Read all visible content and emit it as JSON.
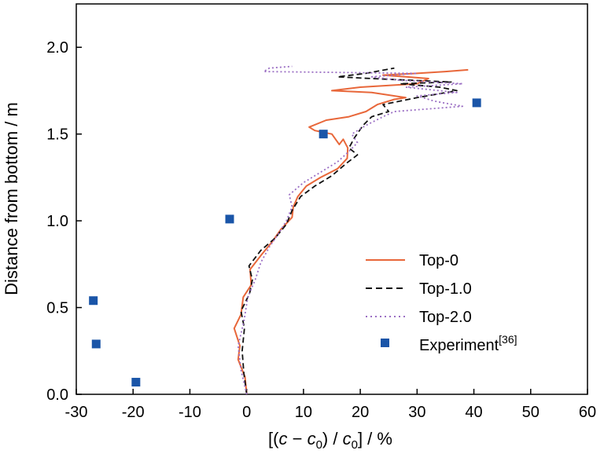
{
  "chart_data": {
    "type": "line",
    "title": "",
    "xlabel_parts": {
      "open": "[(",
      "c": "c",
      "minus": " − ",
      "c2": "c",
      "sub1": "0",
      "mid": ") / ",
      "c3": "c",
      "sub2": "0",
      "close": "] / %"
    },
    "ylabel": "Distance from bottom / m",
    "xlim": [
      -30,
      60
    ],
    "ylim": [
      0.0,
      2.25
    ],
    "x_ticks": [
      -30,
      -20,
      -10,
      0,
      10,
      20,
      30,
      40,
      50,
      60
    ],
    "x_tick_labels": [
      "-30",
      "-20",
      "-10",
      "0",
      "10",
      "20",
      "30",
      "40",
      "50",
      "60"
    ],
    "y_ticks": [
      0.0,
      0.5,
      1.0,
      1.5,
      2.0
    ],
    "y_tick_labels": [
      "0.0",
      "0.5",
      "1.0",
      "1.5",
      "2.0"
    ],
    "grid": false,
    "legend_position": "lower-right",
    "series": [
      {
        "name": "Top-0",
        "style": "solid",
        "color": "#e8673a",
        "points": [
          [
            0,
            0.0
          ],
          [
            -0.3,
            0.1
          ],
          [
            -1.5,
            0.2
          ],
          [
            -1.2,
            0.28
          ],
          [
            -2.2,
            0.38
          ],
          [
            -1.0,
            0.46
          ],
          [
            -0.6,
            0.56
          ],
          [
            0.8,
            0.63
          ],
          [
            0.6,
            0.72
          ],
          [
            2.5,
            0.8
          ],
          [
            4.5,
            0.88
          ],
          [
            6.0,
            0.95
          ],
          [
            8.0,
            1.02
          ],
          [
            8.2,
            1.08
          ],
          [
            9.0,
            1.14
          ],
          [
            10.5,
            1.2
          ],
          [
            13.0,
            1.25
          ],
          [
            16.0,
            1.3
          ],
          [
            17.7,
            1.36
          ],
          [
            17.8,
            1.42
          ],
          [
            17.0,
            1.47
          ],
          [
            16.3,
            1.44
          ],
          [
            15.0,
            1.5
          ],
          [
            12.0,
            1.52
          ],
          [
            11.0,
            1.54
          ],
          [
            14.0,
            1.58
          ],
          [
            18.0,
            1.6
          ],
          [
            21.0,
            1.63
          ],
          [
            23.0,
            1.67
          ],
          [
            26.0,
            1.7
          ],
          [
            28.0,
            1.71
          ],
          [
            22.0,
            1.74
          ],
          [
            15.0,
            1.75
          ],
          [
            20.0,
            1.77
          ],
          [
            30.0,
            1.79
          ],
          [
            32.0,
            1.82
          ],
          [
            28.0,
            1.83
          ],
          [
            24.0,
            1.84
          ],
          [
            30.0,
            1.85
          ],
          [
            35.0,
            1.86
          ],
          [
            39.0,
            1.87
          ]
        ]
      },
      {
        "name": "Top-1.0",
        "style": "dashed",
        "color": "#111111",
        "points": [
          [
            0,
            0.0
          ],
          [
            -0.5,
            0.12
          ],
          [
            -0.8,
            0.25
          ],
          [
            -0.4,
            0.38
          ],
          [
            -1.0,
            0.48
          ],
          [
            0.5,
            0.58
          ],
          [
            1.0,
            0.66
          ],
          [
            0.4,
            0.74
          ],
          [
            2.5,
            0.83
          ],
          [
            5.0,
            0.9
          ],
          [
            7.0,
            0.98
          ],
          [
            8.0,
            1.06
          ],
          [
            9.5,
            1.14
          ],
          [
            12.0,
            1.2
          ],
          [
            15.0,
            1.26
          ],
          [
            17.5,
            1.33
          ],
          [
            19.5,
            1.38
          ],
          [
            18.0,
            1.42
          ],
          [
            19.0,
            1.48
          ],
          [
            20.5,
            1.55
          ],
          [
            22.0,
            1.6
          ],
          [
            25.0,
            1.63
          ],
          [
            24.0,
            1.67
          ],
          [
            30.0,
            1.71
          ],
          [
            37.0,
            1.75
          ],
          [
            34.0,
            1.77
          ],
          [
            27.0,
            1.79
          ],
          [
            36.0,
            1.8
          ],
          [
            29.0,
            1.81
          ],
          [
            22.0,
            1.82
          ],
          [
            16.0,
            1.83
          ],
          [
            21.0,
            1.85
          ],
          [
            26.0,
            1.88
          ]
        ]
      },
      {
        "name": "Top-2.0",
        "style": "dotted",
        "color": "#9b6fc4",
        "points": [
          [
            0,
            0.0
          ],
          [
            -1.0,
            0.14
          ],
          [
            -1.5,
            0.28
          ],
          [
            -0.5,
            0.42
          ],
          [
            0.2,
            0.56
          ],
          [
            1.5,
            0.66
          ],
          [
            2.5,
            0.76
          ],
          [
            4.0,
            0.85
          ],
          [
            5.5,
            0.92
          ],
          [
            7.0,
            1.0
          ],
          [
            8.0,
            1.08
          ],
          [
            7.5,
            1.15
          ],
          [
            10.0,
            1.22
          ],
          [
            13.0,
            1.28
          ],
          [
            16.0,
            1.34
          ],
          [
            18.0,
            1.4
          ],
          [
            19.5,
            1.45
          ],
          [
            18.5,
            1.5
          ],
          [
            21.0,
            1.55
          ],
          [
            24.0,
            1.6
          ],
          [
            26.0,
            1.63
          ],
          [
            38.0,
            1.66
          ],
          [
            33.0,
            1.69
          ],
          [
            30.0,
            1.72
          ],
          [
            37.0,
            1.74
          ],
          [
            28.0,
            1.77
          ],
          [
            38.0,
            1.79
          ],
          [
            27.0,
            1.81
          ],
          [
            22.0,
            1.83
          ],
          [
            30.0,
            1.85
          ],
          [
            3.0,
            1.86
          ],
          [
            4.0,
            1.88
          ],
          [
            8.0,
            1.89
          ]
        ]
      },
      {
        "name": "Experiment",
        "name_sup": "[36]",
        "style": "marker",
        "color": "#1a55a8",
        "points": [
          [
            -27.0,
            0.54
          ],
          [
            -26.5,
            0.29
          ],
          [
            -19.5,
            0.07
          ],
          [
            -3.0,
            1.01
          ],
          [
            13.5,
            1.5
          ],
          [
            40.5,
            1.68
          ]
        ]
      }
    ]
  }
}
